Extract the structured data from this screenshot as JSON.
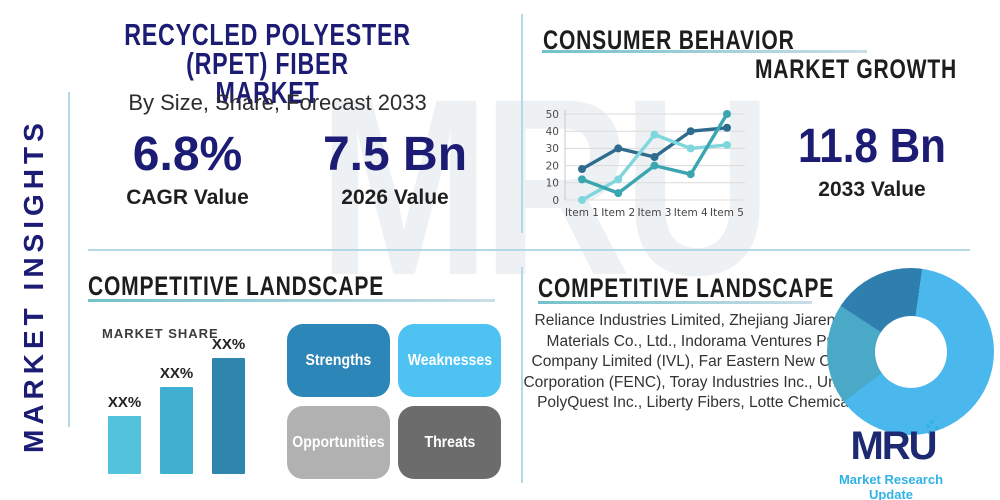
{
  "theme": {
    "navy": "#1c1c74",
    "heading": "#1d1d1d",
    "divider": "#b5d8e6",
    "underline_from": "#74c1ca",
    "underline_to": "#cadee7",
    "text_dark": "#2d2d2d",
    "logo_navy": "#1d2a72",
    "logo_teal": "#31b2e6"
  },
  "sidebar": {
    "label": "MARKET INSIGHTS"
  },
  "header": {
    "title_line1": "RECYCLED POLYESTER (RPET) FIBER",
    "title_line2": "MARKET",
    "subtitle": "By Size, Share, Forecast 2033"
  },
  "stats": {
    "cagr_value": "6.8%",
    "cagr_label": "CAGR Value",
    "base_value": "7.5 Bn",
    "base_label": "2026 Value",
    "forecast_value": "11.8 Bn",
    "forecast_label": "2033 Value"
  },
  "sections": {
    "consumer_behavior": "CONSUMER BEHAVIOR",
    "market_growth": "MARKET GROWTH",
    "competitive_landscape_left": "COMPETITIVE LANDSCAPE",
    "competitive_landscape_right": "COMPETITIVE LANDSCAPE"
  },
  "swot": [
    {
      "label": "Strengths",
      "color": "#2c86b8"
    },
    {
      "label": "Weaknesses",
      "color": "#4ec3f1"
    },
    {
      "label": "Opportunities",
      "color": "#b1b1b1"
    },
    {
      "label": "Threats",
      "color": "#6c6c6c"
    }
  ],
  "companies": "Reliance Industries Limited, Zhejiang Jiaren New Materials Co., Ltd., Indorama Ventures Public Company Limited (IVL), Far Eastern New Century Corporation (FENC), Toray Industries Inc., Unifi Inc., PolyQuest Inc., Liberty Fibers, Lotte Chemical C",
  "logo": {
    "abbr": "MRU",
    "tagline": "Market Research Update"
  },
  "watermark_text": "MRU",
  "chart_data": [
    {
      "type": "line",
      "title": "",
      "categories": [
        "Item 1",
        "Item 2",
        "Item 3",
        "Item 4",
        "Item 5"
      ],
      "series": [
        {
          "name": "dark-blue-series",
          "color": "#2e6b8d",
          "values": [
            18,
            30,
            25,
            40,
            42
          ]
        },
        {
          "name": "light-cyan-series",
          "color": "#7fd6dc",
          "values": [
            0,
            12,
            38,
            30,
            32
          ]
        },
        {
          "name": "teal-series",
          "color": "#3aa6b0",
          "values": [
            12,
            4,
            20,
            15,
            50
          ]
        }
      ],
      "ylim": [
        0,
        50
      ],
      "yticks": [
        0,
        10,
        20,
        30,
        40,
        50
      ],
      "grid": true,
      "legend": false
    },
    {
      "type": "bar",
      "title": "MARKET SHARE",
      "categories": [
        "XX%",
        "XX%",
        "XX%"
      ],
      "values": [
        30,
        45,
        60
      ],
      "colors": [
        "#53c2db",
        "#3fb0cf",
        "#2e86ae"
      ],
      "ylim": [
        0,
        60
      ],
      "value_labels": "above"
    },
    {
      "type": "donut",
      "slices": [
        {
          "name": "primary-share",
          "value": 62.5,
          "color": "#4ab8ec"
        },
        {
          "name": "secondary-share",
          "value": 19.5,
          "color": "#49a9c6"
        },
        {
          "name": "tertiary-share",
          "value": 18,
          "color": "#2f7fae"
        }
      ],
      "start_angle_deg": 8
    }
  ]
}
